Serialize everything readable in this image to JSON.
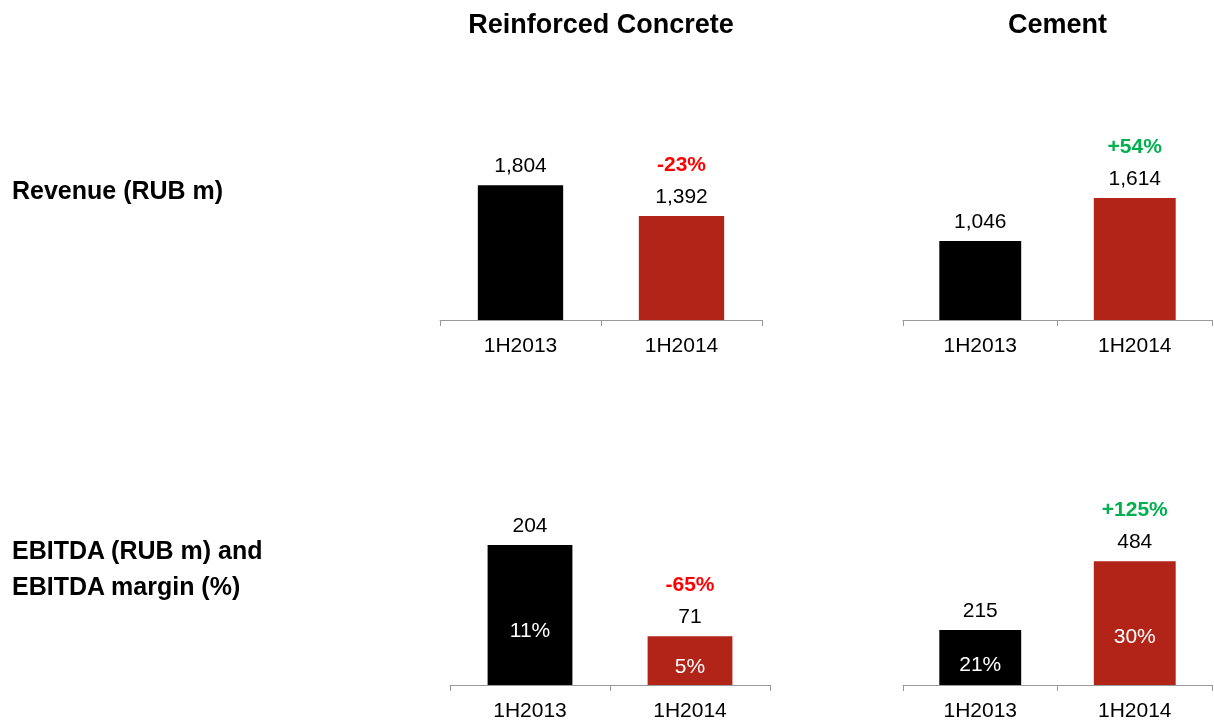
{
  "chart_data": [
    {
      "type": "bar",
      "title": "Reinforced Concrete",
      "ylabel": "Revenue (RUB m)",
      "categories": [
        "1H2013",
        "1H2014"
      ],
      "values": [
        1804,
        1392
      ],
      "colors": [
        "#000000",
        "#b22418"
      ],
      "value_labels": [
        "1,804",
        "1,392"
      ],
      "annotations": [
        "-23%"
      ]
    },
    {
      "type": "bar",
      "title": "Cement",
      "categories": [
        "1H2013",
        "1H2014"
      ],
      "values": [
        1046,
        1614
      ],
      "colors": [
        "#000000",
        "#b22418"
      ],
      "value_labels": [
        "1,046",
        "1,614"
      ],
      "annotations": [
        "+54%"
      ]
    },
    {
      "type": "bar",
      "ylabel": "EBITDA (RUB m) and EBITDA margin (%)",
      "categories": [
        "1H2013",
        "1H2014"
      ],
      "values": [
        204,
        71
      ],
      "colors": [
        "#000000",
        "#b22418"
      ],
      "value_labels": [
        "204",
        "71"
      ],
      "annotations": [
        "-65%",
        "11%",
        "5%"
      ]
    },
    {
      "type": "bar",
      "categories": [
        "1H2013",
        "1H2014"
      ],
      "values": [
        215,
        484
      ],
      "colors": [
        "#000000",
        "#b22418"
      ],
      "value_labels": [
        "215",
        "484"
      ],
      "annotations": [
        "+125%",
        "21%",
        "30%"
      ]
    }
  ]
}
